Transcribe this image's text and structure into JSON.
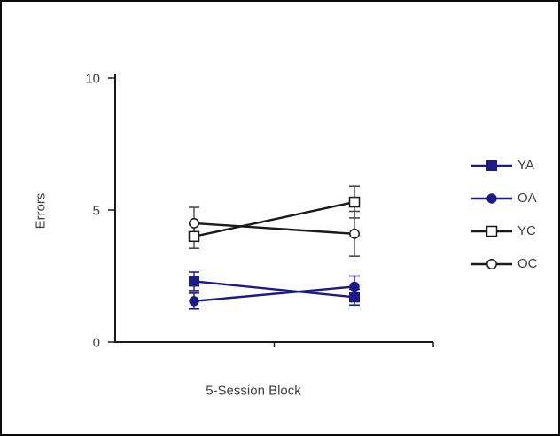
{
  "figure": {
    "background": "#ffffff",
    "frame_color": "#0a0a0a",
    "text_color": "#3f3f3f",
    "axis_color": "#1a1a1a"
  },
  "chart_data": {
    "type": "line",
    "title": "",
    "xlabel": "5-Session Block",
    "ylabel": "Errors",
    "ylim": [
      0,
      10
    ],
    "yticks": [
      0,
      5,
      10
    ],
    "x_points": 2,
    "x_tick_labels": [
      "",
      ""
    ],
    "grid": false,
    "legend_position": "right",
    "series": [
      {
        "name": "YA",
        "color": "#1a1a8c",
        "error_color": "#1a1a8c",
        "marker": "filled-square",
        "values": [
          2.3,
          1.7
        ],
        "errors": [
          0.35,
          0.3
        ]
      },
      {
        "name": "OA",
        "color": "#1a1a8c",
        "error_color": "#1a1a8c",
        "marker": "filled-circle",
        "values": [
          1.55,
          2.1
        ],
        "errors": [
          0.3,
          0.4
        ]
      },
      {
        "name": "YC",
        "color": "#1a1a1a",
        "error_color": "#4a4a4a",
        "marker": "open-square",
        "values": [
          4.0,
          5.3
        ],
        "errors": [
          0.45,
          0.6
        ]
      },
      {
        "name": "OC",
        "color": "#1a1a1a",
        "error_color": "#4a4a4a",
        "marker": "open-circle",
        "values": [
          4.5,
          4.1
        ],
        "errors": [
          0.6,
          0.85
        ]
      }
    ]
  }
}
